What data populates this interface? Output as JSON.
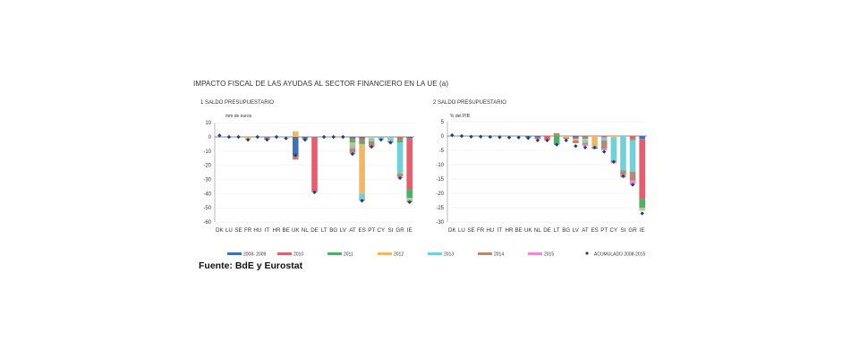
{
  "title": "IMPACTO FISCAL DE LAS AYUDAS AL SECTOR FINANCIERO EN LA UE (a)",
  "source": "Fuente: BdE y Eurostat",
  "legend": [
    {
      "label": "2008- 2009",
      "color": "#3f72b5",
      "kind": "bar"
    },
    {
      "label": "2010",
      "color": "#e06070",
      "kind": "bar"
    },
    {
      "label": "2011",
      "color": "#4fae6a",
      "kind": "bar"
    },
    {
      "label": "2012",
      "color": "#f2b766",
      "kind": "bar"
    },
    {
      "label": "2013",
      "color": "#72d0d8",
      "kind": "bar"
    },
    {
      "label": "2014",
      "color": "#b08a72",
      "kind": "bar"
    },
    {
      "label": "2015",
      "color": "#ef8ad2",
      "kind": "bar"
    },
    {
      "label": "ACUMULADO 2008-2015",
      "color": "#1f3f80",
      "kind": "marker"
    }
  ],
  "chart_data": [
    {
      "type": "bar",
      "stacked": true,
      "panel_title": "1  SALDO PRESUPUESTARIO",
      "unit": "mm de euros",
      "ylim": [
        -60,
        10
      ],
      "yticks": [
        10,
        0,
        -10,
        -20,
        -30,
        -40,
        -50,
        -60
      ],
      "categories": [
        "DK",
        "LU",
        "SE",
        "FR",
        "HU",
        "IT",
        "HR",
        "BE",
        "UK",
        "NL",
        "DE",
        "LT",
        "BG",
        "LV",
        "AT",
        "ES",
        "PT",
        "CY",
        "SI",
        "GR",
        "IE"
      ],
      "series": [
        {
          "name": "2008- 2009",
          "values": [
            0,
            0,
            0,
            0,
            0,
            0,
            0,
            0,
            -13,
            -1,
            0,
            0,
            0,
            0,
            -1,
            -1,
            0,
            0,
            0,
            0,
            -1
          ]
        },
        {
          "name": "2010",
          "values": [
            0,
            0,
            0,
            0,
            0,
            -1,
            0,
            0,
            -1,
            0,
            -38,
            0,
            0,
            0,
            -1,
            -2,
            0,
            0,
            0,
            -2,
            -36
          ]
        },
        {
          "name": "2011",
          "values": [
            0,
            0,
            0,
            0,
            0,
            0,
            0,
            0,
            0,
            0,
            -1,
            0,
            0,
            0,
            -2,
            -2,
            0,
            0,
            0,
            -2,
            -6
          ]
        },
        {
          "name": "2012",
          "values": [
            0,
            0,
            0,
            -2,
            0,
            0,
            0,
            -1,
            4,
            0,
            0,
            0,
            0,
            0,
            -2,
            -35,
            -1,
            0,
            0,
            0,
            -1
          ]
        },
        {
          "name": "2013",
          "values": [
            0,
            0,
            0,
            0,
            0,
            0,
            0,
            0,
            0,
            0,
            0,
            0,
            0,
            0,
            -2,
            -4,
            -2,
            -2,
            -3,
            -22,
            -1
          ]
        },
        {
          "name": "2014",
          "values": [
            0,
            0,
            0,
            0,
            0,
            -1,
            0,
            0,
            -2,
            -1,
            0,
            0,
            0,
            0,
            -3,
            -1,
            -4,
            0,
            -1,
            -2,
            -1
          ]
        },
        {
          "name": "2015",
          "values": [
            0,
            0,
            0,
            0,
            0,
            0,
            0,
            0,
            0,
            0,
            0,
            0,
            0,
            0,
            -1,
            0,
            0,
            0,
            0,
            -1,
            0
          ]
        }
      ],
      "cumulative": [
        1,
        0,
        0,
        -2,
        0,
        -2,
        0,
        -1,
        -13,
        -2,
        -39,
        0,
        0,
        0,
        -12,
        -45,
        -7,
        -2,
        -4,
        -29,
        -46
      ]
    },
    {
      "type": "bar",
      "stacked": true,
      "panel_title": "2  SALDO PRESUPUESTARIO",
      "unit": "% del PIB",
      "ylim": [
        -30,
        5
      ],
      "yticks": [
        5,
        0,
        -5,
        -10,
        -15,
        -20,
        -25,
        -30
      ],
      "categories": [
        "DK",
        "LU",
        "SE",
        "FR",
        "HU",
        "IT",
        "HR",
        "BE",
        "UK",
        "NL",
        "DE",
        "LT",
        "BG",
        "LV",
        "AT",
        "ES",
        "PT",
        "CY",
        "SI",
        "GR",
        "IE"
      ],
      "series": [
        {
          "name": "2008- 2009",
          "values": [
            0,
            0,
            0,
            0,
            0,
            0,
            0,
            0,
            -0.5,
            -0.5,
            0,
            0,
            0,
            -0.5,
            0,
            0,
            0,
            0,
            0,
            0,
            -1
          ]
        },
        {
          "name": "2010",
          "values": [
            0,
            0,
            0,
            0,
            0,
            0,
            0,
            0,
            0,
            -0.5,
            -1,
            0,
            0,
            -0.5,
            -0.5,
            0,
            -0.5,
            0,
            0,
            -1,
            -21
          ]
        },
        {
          "name": "2011",
          "values": [
            0,
            0,
            0,
            0,
            0,
            0,
            0,
            0,
            0,
            0,
            0,
            -3,
            0,
            0,
            -0.5,
            0,
            0,
            0,
            0,
            -0.5,
            -3
          ]
        },
        {
          "name": "2012",
          "values": [
            0,
            0,
            0,
            0,
            0,
            0,
            0,
            0,
            0,
            0,
            0,
            0,
            -0.5,
            -0.5,
            -0.5,
            -3.5,
            0,
            -0.5,
            0,
            0,
            -0.5
          ]
        },
        {
          "name": "2013",
          "values": [
            0,
            0,
            0,
            0,
            0,
            0,
            0,
            0,
            0,
            0,
            0,
            0,
            0,
            0,
            -1,
            -0.5,
            -1,
            -8,
            -12,
            -11,
            -0.5
          ]
        },
        {
          "name": "2014",
          "values": [
            0,
            0,
            0,
            0,
            0,
            0,
            0,
            0,
            0,
            0,
            -0.5,
            1,
            -0.5,
            -1,
            -0.5,
            -0.5,
            -3,
            -0.5,
            -1.5,
            -3,
            0
          ]
        },
        {
          "name": "2015",
          "values": [
            0,
            0,
            0,
            0,
            0,
            0,
            0,
            0,
            0,
            0,
            0,
            0,
            0,
            0,
            -0.5,
            0,
            -0.5,
            -0.5,
            -1,
            -1.5,
            0
          ]
        }
      ],
      "cumulative": [
        0.3,
        0,
        -0.2,
        -0.2,
        -0.3,
        -0.4,
        -0.5,
        -0.5,
        -0.7,
        -1.5,
        -1.5,
        -3,
        -1.5,
        -3.5,
        -4,
        -4,
        -5.5,
        -9,
        -14,
        -17,
        -27
      ]
    }
  ]
}
